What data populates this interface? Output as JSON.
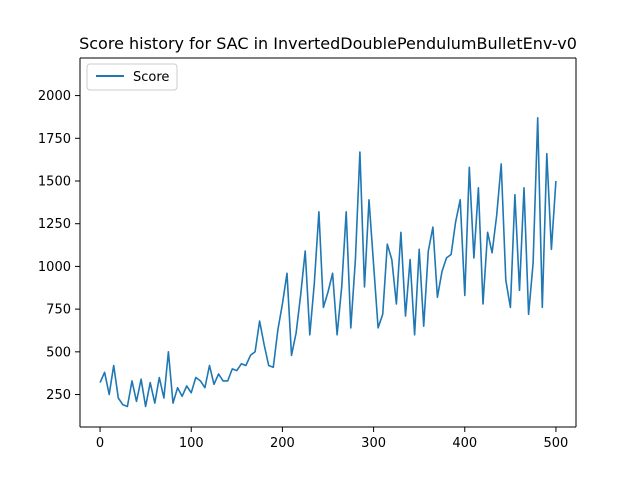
{
  "chart_data": {
    "type": "line",
    "title": "Score history for SAC in InvertedDoublePendulumBulletEnv-v0",
    "xlabel": "",
    "ylabel": "",
    "xlim": [
      -22,
      522
    ],
    "ylim": [
      60,
      2220
    ],
    "xticks": [
      0,
      100,
      200,
      300,
      400,
      500
    ],
    "yticks": [
      250,
      500,
      750,
      1000,
      1250,
      1500,
      1750,
      2000
    ],
    "grid": false,
    "legend_position": "top-left",
    "series": [
      {
        "name": "Score",
        "color": "#1f77b4",
        "x": [
          0,
          5,
          10,
          15,
          20,
          25,
          30,
          35,
          40,
          45,
          50,
          55,
          60,
          65,
          70,
          75,
          80,
          85,
          90,
          95,
          100,
          105,
          110,
          115,
          120,
          125,
          130,
          135,
          140,
          145,
          150,
          155,
          160,
          165,
          170,
          175,
          180,
          185,
          190,
          195,
          200,
          205,
          210,
          215,
          220,
          225,
          230,
          235,
          240,
          245,
          250,
          255,
          260,
          265,
          270,
          275,
          280,
          285,
          290,
          295,
          300,
          305,
          310,
          315,
          320,
          325,
          330,
          335,
          340,
          345,
          350,
          355,
          360,
          365,
          370,
          375,
          380,
          385,
          390,
          395,
          400,
          405,
          410,
          415,
          420,
          425,
          430,
          435,
          440,
          445,
          450,
          455,
          460,
          465,
          470,
          475,
          480,
          485,
          490,
          495,
          500
        ],
        "y": [
          320,
          380,
          250,
          420,
          230,
          190,
          180,
          330,
          210,
          340,
          180,
          320,
          200,
          350,
          230,
          500,
          200,
          290,
          240,
          300,
          260,
          350,
          330,
          290,
          420,
          310,
          370,
          330,
          330,
          400,
          390,
          430,
          420,
          480,
          500,
          680,
          540,
          420,
          410,
          630,
          780,
          960,
          480,
          610,
          830,
          1090,
          600,
          900,
          1320,
          760,
          850,
          960,
          600,
          880,
          1320,
          640,
          1040,
          1670,
          880,
          1390,
          1010,
          640,
          720,
          1130,
          1040,
          780,
          1200,
          710,
          1040,
          600,
          1100,
          650,
          1090,
          1230,
          820,
          970,
          1050,
          1070,
          1260,
          1390,
          830,
          1580,
          1050,
          1460,
          780,
          1200,
          1080,
          1300,
          1600,
          920,
          760,
          1420,
          860,
          1460,
          720,
          1020,
          1870,
          760,
          1660,
          1100,
          1500
        ]
      }
    ]
  }
}
